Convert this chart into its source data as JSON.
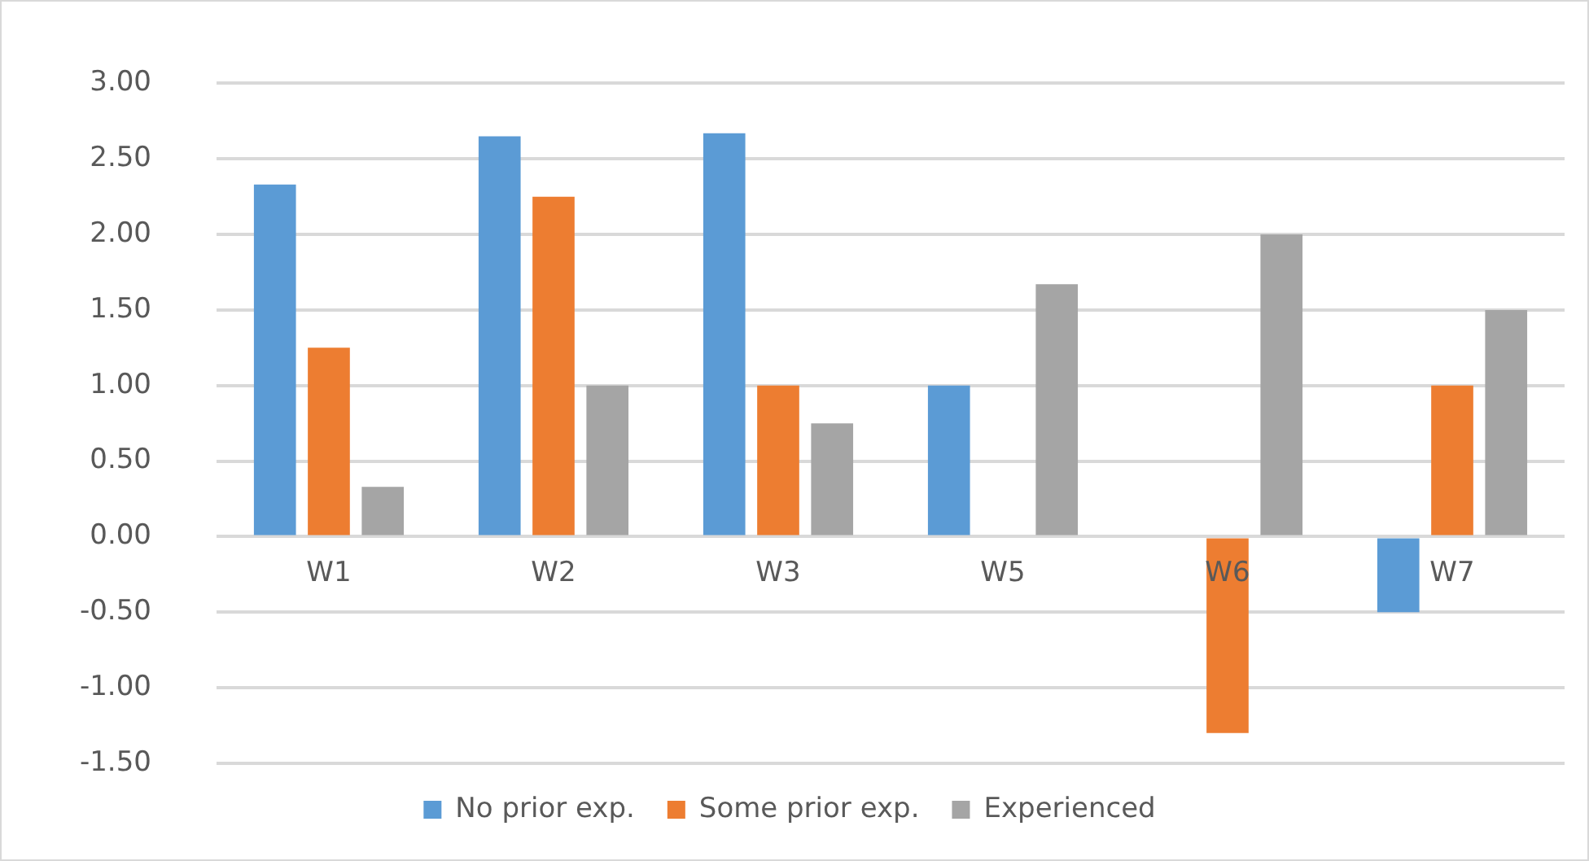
{
  "chart_data": {
    "type": "bar",
    "categories": [
      "W1",
      "W2",
      "W3",
      "W5",
      "W6",
      "W7"
    ],
    "series": [
      {
        "name": "No prior exp.",
        "color": "#5b9bd5",
        "values": [
          2.33,
          2.65,
          2.67,
          1.0,
          null,
          -0.5
        ]
      },
      {
        "name": "Some prior exp.",
        "color": "#ed7d31",
        "values": [
          1.25,
          2.25,
          1.0,
          null,
          -1.3,
          1.0
        ]
      },
      {
        "name": "Experienced",
        "color": "#a5a5a5",
        "values": [
          0.33,
          1.0,
          0.75,
          1.67,
          2.0,
          1.5
        ]
      }
    ],
    "ylim": [
      -1.5,
      3.0
    ],
    "yticks": [
      {
        "value": -1.5,
        "label": "-1.50"
      },
      {
        "value": -1,
        "label": "-1.00"
      },
      {
        "value": -0.5,
        "label": "-0.50"
      },
      {
        "value": 0,
        "label": "0.00"
      },
      {
        "value": 0.5,
        "label": "0.50"
      },
      {
        "value": 1,
        "label": "1.00"
      },
      {
        "value": 1.5,
        "label": "1.50"
      },
      {
        "value": 2,
        "label": "2.00"
      },
      {
        "value": 2.5,
        "label": "2.50"
      },
      {
        "value": 3,
        "label": "3.00"
      }
    ],
    "grid": "y",
    "legend": "bottom"
  }
}
